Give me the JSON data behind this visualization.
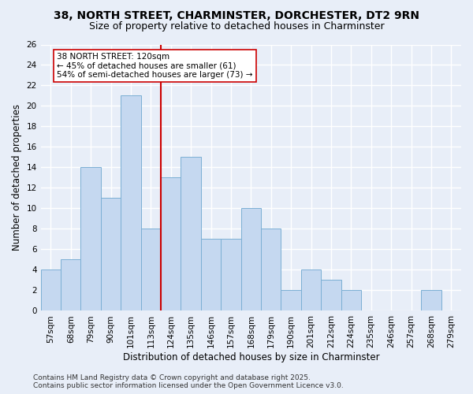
{
  "title": "38, NORTH STREET, CHARMINSTER, DORCHESTER, DT2 9RN",
  "subtitle": "Size of property relative to detached houses in Charminster",
  "xlabel": "Distribution of detached houses by size in Charminster",
  "ylabel": "Number of detached properties",
  "bar_labels": [
    "57sqm",
    "68sqm",
    "79sqm",
    "90sqm",
    "101sqm",
    "113sqm",
    "124sqm",
    "135sqm",
    "146sqm",
    "157sqm",
    "168sqm",
    "179sqm",
    "190sqm",
    "201sqm",
    "212sqm",
    "224sqm",
    "235sqm",
    "246sqm",
    "257sqm",
    "268sqm",
    "279sqm"
  ],
  "bar_values": [
    4,
    5,
    14,
    11,
    21,
    8,
    13,
    15,
    7,
    7,
    10,
    8,
    2,
    4,
    3,
    2,
    0,
    0,
    0,
    2,
    0
  ],
  "bar_color": "#c5d8f0",
  "bar_edge_color": "#7bafd4",
  "vline_x": 5.5,
  "vline_color": "#cc0000",
  "annotation_text": "38 NORTH STREET: 120sqm\n← 45% of detached houses are smaller (61)\n54% of semi-detached houses are larger (73) →",
  "annotation_box_color": "#ffffff",
  "annotation_box_edge_color": "#cc0000",
  "ylim": [
    0,
    26
  ],
  "yticks": [
    0,
    2,
    4,
    6,
    8,
    10,
    12,
    14,
    16,
    18,
    20,
    22,
    24,
    26
  ],
  "footer": "Contains HM Land Registry data © Crown copyright and database right 2025.\nContains public sector information licensed under the Open Government Licence v3.0.",
  "background_color": "#e8eef8",
  "plot_background_color": "#e8eef8",
  "grid_color": "#ffffff",
  "title_fontsize": 10,
  "subtitle_fontsize": 9,
  "axis_label_fontsize": 8.5,
  "tick_fontsize": 7.5,
  "footer_fontsize": 6.5,
  "annotation_fontsize": 7.5
}
